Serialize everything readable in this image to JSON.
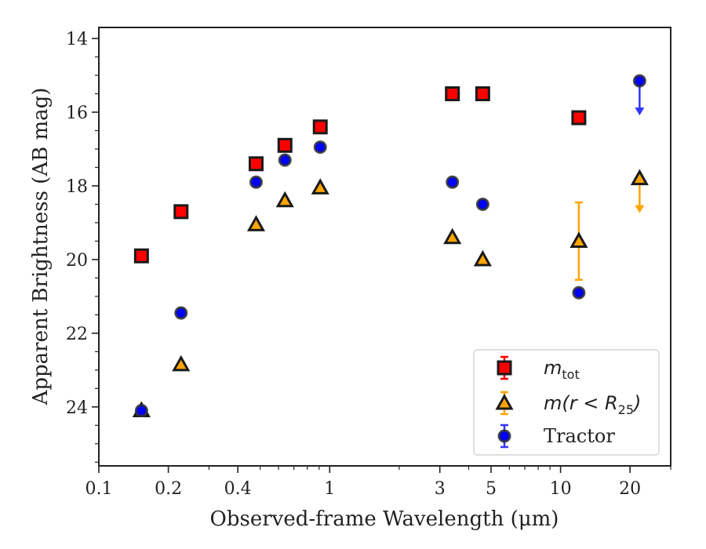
{
  "chart_data": {
    "type": "scatter",
    "xlabel": "Observed-frame Wavelength (μm)",
    "ylabel": "Apparent Brightness (AB mag)",
    "xscale": "log",
    "xlim": [
      0.1,
      30
    ],
    "ylim": [
      25.6,
      13.7
    ],
    "y_inverted": true,
    "x_ticks": [
      0.1,
      0.2,
      0.4,
      1,
      3,
      5,
      10,
      20
    ],
    "x_tick_labels": [
      "0.1",
      "0.2",
      "0.4",
      "1",
      "3",
      "5",
      "10",
      "20"
    ],
    "y_ticks": [
      14,
      16,
      18,
      20,
      22,
      24
    ],
    "y_tick_labels": [
      "14",
      "16",
      "18",
      "20",
      "22",
      "24"
    ],
    "grid": false,
    "legend_position": "lower-right",
    "series": [
      {
        "name": "m_tot",
        "legend_main": "m",
        "legend_sub": "tot",
        "marker": "square",
        "color": "#ff0000",
        "errcolor": "#ff0000",
        "x": [
          0.153,
          0.227,
          0.48,
          0.64,
          0.91,
          3.4,
          4.6,
          12.0
        ],
        "y": [
          19.9,
          18.7,
          17.4,
          16.9,
          16.4,
          15.5,
          15.5,
          16.15
        ],
        "yerr": [
          0.05,
          0.05,
          0.05,
          0.05,
          0.05,
          0.05,
          0.05,
          0.05
        ],
        "upper_limit": [
          false,
          false,
          false,
          false,
          false,
          false,
          false,
          false
        ]
      },
      {
        "name": "m(r < R25)",
        "legend_main": "m(r < R",
        "legend_sub": "25",
        "legend_tail": ")",
        "marker": "triangle",
        "color": "#ffa500",
        "errcolor": "#ffa500",
        "x": [
          0.153,
          0.227,
          0.48,
          0.64,
          0.91,
          3.4,
          4.6,
          12.0,
          22.0
        ],
        "y": [
          24.1,
          22.85,
          19.05,
          18.4,
          18.05,
          19.4,
          20.0,
          19.5,
          17.8
        ],
        "yerr": [
          0.05,
          0.05,
          0.05,
          0.05,
          0.05,
          0.05,
          0.05,
          1.05,
          0
        ],
        "upper_limit": [
          false,
          false,
          false,
          false,
          false,
          false,
          false,
          false,
          true
        ]
      },
      {
        "name": "Tractor",
        "marker": "circle",
        "color": "#0000ff",
        "errcolor": "#3333ff",
        "x": [
          0.153,
          0.227,
          0.48,
          0.64,
          0.91,
          3.4,
          4.6,
          12.0,
          22.0
        ],
        "y": [
          24.1,
          21.45,
          17.9,
          17.3,
          16.95,
          17.9,
          18.5,
          20.9,
          15.15
        ],
        "yerr": [
          0.06,
          0.06,
          0.06,
          0.06,
          0.06,
          0.06,
          0.06,
          0.06,
          0
        ],
        "upper_limit": [
          false,
          false,
          false,
          false,
          false,
          false,
          false,
          false,
          true
        ]
      }
    ]
  }
}
